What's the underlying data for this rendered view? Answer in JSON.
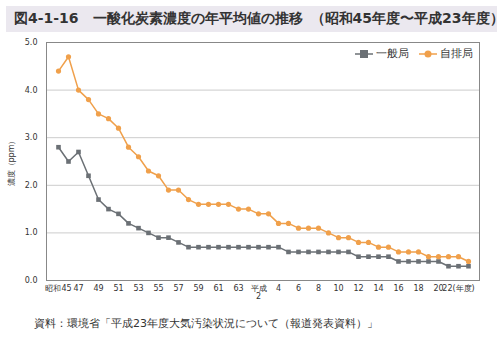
{
  "chart_data": {
    "type": "line",
    "title": "図4-1-16　一酸化炭素濃度の年平均値の推移",
    "subtitle": "（昭和45年度〜平成23年度）",
    "caption": "資料：環境省「平成23年度大気汚染状況について（報道発表資料）」",
    "y_label": "濃度（ppm）",
    "categories": [
      "昭和45",
      null,
      "47",
      null,
      "49",
      null,
      "51",
      null,
      "53",
      null,
      "55",
      null,
      "57",
      null,
      "59",
      null,
      "61",
      null,
      "63",
      null,
      "平成\n2",
      null,
      "4",
      null,
      "6",
      null,
      "8",
      null,
      "10",
      null,
      "12",
      null,
      "14",
      null,
      "16",
      null,
      "18",
      null,
      "20",
      null,
      "22(年度)",
      null
    ],
    "series": [
      {
        "name": "一般局",
        "color": "#6b7075",
        "marker": "square",
        "values": [
          2.8,
          2.5,
          2.7,
          2.2,
          1.7,
          1.5,
          1.4,
          1.2,
          1.1,
          1.0,
          0.9,
          0.9,
          0.8,
          0.7,
          0.7,
          0.7,
          0.7,
          0.7,
          0.7,
          0.7,
          0.7,
          0.7,
          0.7,
          0.6,
          0.6,
          0.6,
          0.6,
          0.6,
          0.6,
          0.6,
          0.5,
          0.5,
          0.5,
          0.5,
          0.4,
          0.4,
          0.4,
          0.4,
          0.4,
          0.3,
          0.3,
          0.3
        ]
      },
      {
        "name": "自排局",
        "color": "#f0a04b",
        "marker": "circle",
        "values": [
          4.4,
          4.7,
          4.0,
          3.8,
          3.5,
          3.4,
          3.2,
          2.8,
          2.6,
          2.3,
          2.2,
          1.9,
          1.9,
          1.7,
          1.6,
          1.6,
          1.6,
          1.6,
          1.5,
          1.5,
          1.4,
          1.4,
          1.2,
          1.2,
          1.1,
          1.1,
          1.1,
          1.0,
          0.9,
          0.9,
          0.8,
          0.8,
          0.7,
          0.7,
          0.6,
          0.6,
          0.6,
          0.5,
          0.5,
          0.5,
          0.5,
          0.4
        ]
      }
    ],
    "ylim": [
      0,
      5
    ],
    "yticks": [
      {
        "value": 0,
        "label": "0.0"
      },
      {
        "value": 1,
        "label": "1.0"
      },
      {
        "value": 2,
        "label": "2.0"
      },
      {
        "value": 3,
        "label": "3.0"
      },
      {
        "value": 4,
        "label": "4.0"
      },
      {
        "value": 5,
        "label": "5.0"
      }
    ],
    "grid": true,
    "legend": "top-right"
  }
}
